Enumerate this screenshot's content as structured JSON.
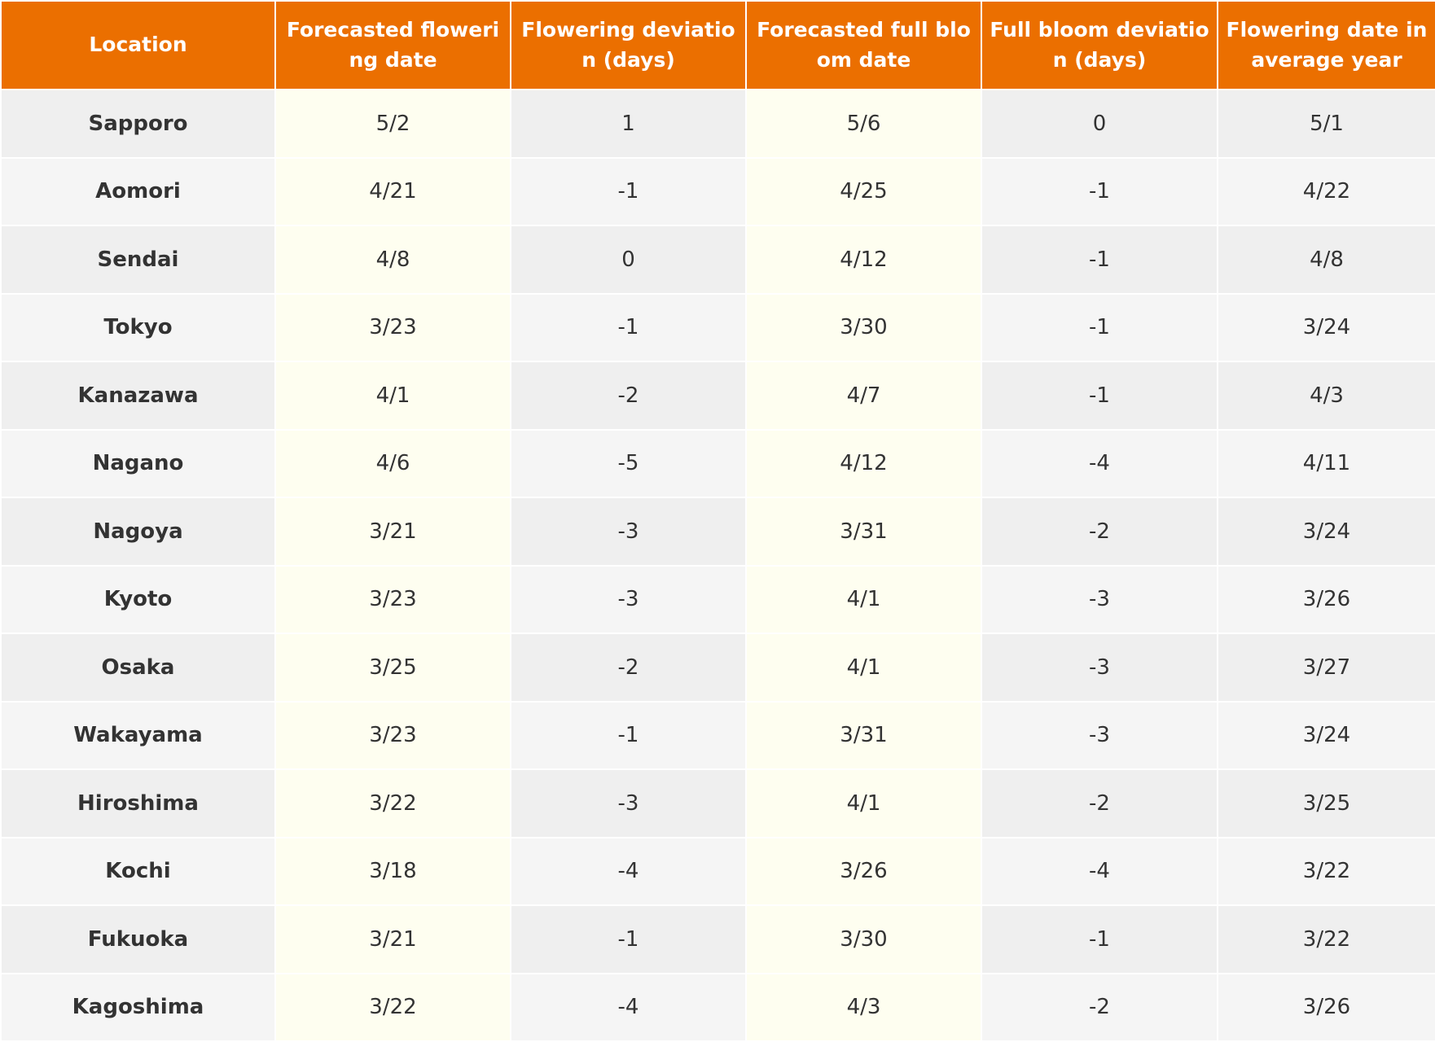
{
  "table": {
    "header": [
      "Location",
      "Forecasted flowering date",
      "Flowering deviation (days)",
      "Forecasted full bloom date",
      "Full bloom deviation (days)",
      "Flowering date in average year"
    ],
    "rows": [
      [
        "Sapporo",
        "5/2",
        1,
        "5/6",
        0,
        "5/1"
      ],
      [
        "Aomori",
        "4/21",
        -1,
        "4/25",
        -1,
        "4/22"
      ],
      [
        "Sendai",
        "4/8",
        0,
        "4/12",
        -1,
        "4/8"
      ],
      [
        "Tokyo",
        "3/23",
        -1,
        "3/30",
        -1,
        "3/24"
      ],
      [
        "Kanazawa",
        "4/1",
        -2,
        "4/7",
        -1,
        "4/3"
      ],
      [
        "Nagano",
        "4/6",
        -5,
        "4/12",
        -4,
        "4/11"
      ],
      [
        "Nagoya",
        "3/21",
        -3,
        "3/31",
        -2,
        "3/24"
      ],
      [
        "Kyoto",
        "3/23",
        -3,
        "4/1",
        -3,
        "3/26"
      ],
      [
        "Osaka",
        "3/25",
        -2,
        "4/1",
        -3,
        "3/27"
      ],
      [
        "Wakayama",
        "3/23",
        -1,
        "3/31",
        -3,
        "3/24"
      ],
      [
        "Hiroshima",
        "3/22",
        -3,
        "4/1",
        -2,
        "3/25"
      ],
      [
        "Kochi",
        "3/18",
        -4,
        "3/26",
        -4,
        "3/22"
      ],
      [
        "Fukuoka",
        "3/21",
        -1,
        "3/30",
        -1,
        "3/22"
      ],
      [
        "Kagoshima",
        "3/22",
        -4,
        "4/3",
        -2,
        "3/26"
      ]
    ]
  }
}
